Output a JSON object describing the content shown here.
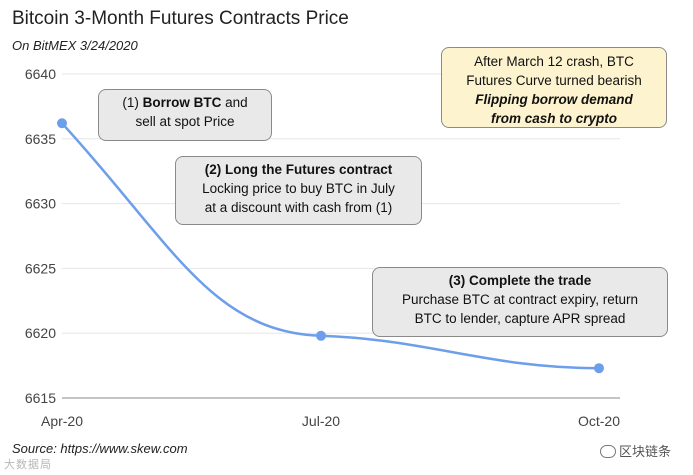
{
  "title": "Bitcoin 3-Month Futures Contracts Price",
  "subtitle": "On BitMEX 3/24/2020",
  "source": "Source: https://www.skew.com",
  "watermark": "区块链条",
  "stamp": "大数据局",
  "callouts": [
    {
      "prefix": "(1) ",
      "bold": "Borrow BTC",
      "suffix": " and",
      "line2": "sell at spot Price"
    },
    {
      "bold": "(2) Long the Futures contract",
      "line2": "Locking price to buy BTC in July",
      "line3": "at a discount with cash from (1)"
    },
    {
      "bold": "(3) Complete the trade",
      "line2": "Purchase BTC at contract expiry, return",
      "line3": "BTC to lender, capture APR spread"
    }
  ],
  "note": {
    "line1": "After March 12 crash, BTC",
    "line2": "Futures Curve turned bearish",
    "line3": "Flipping borrow demand",
    "line4": "from cash to crypto"
  },
  "chart_data": {
    "type": "line",
    "title": "Bitcoin 3-Month Futures Contracts Price",
    "subtitle": "On BitMEX 3/24/2020",
    "x": [
      "Apr-20",
      "Jul-20",
      "Oct-20"
    ],
    "y": [
      6636.2,
      6619.8,
      6617.3
    ],
    "xlabel": "",
    "ylabel": "",
    "ylim": [
      6615,
      6640
    ],
    "yticks": [
      6615,
      6620,
      6625,
      6630,
      6635,
      6640
    ],
    "xticks": [
      "Apr-20",
      "Jul-20",
      "Oct-20"
    ],
    "grid": true,
    "line_color": "#6d9eeb",
    "grid_color": "#e6e6e6"
  }
}
